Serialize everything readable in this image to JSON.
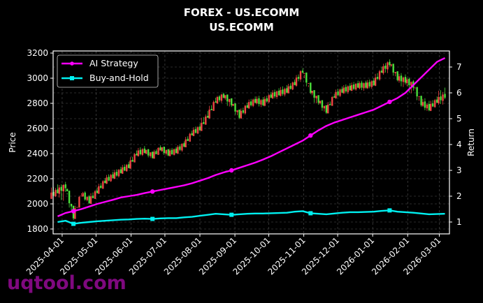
{
  "header": {
    "title_line1": "FOREX - US.ECOMM",
    "title_line2": "US.ECOMM"
  },
  "watermark": "uqtool.com",
  "colors": {
    "background": "#000000",
    "up_candle": "#ef4444",
    "down_candle": "#4ade3a",
    "ai_strategy": "#ff00ff",
    "buy_and_hold": "#00f0f0",
    "grid": "#555555",
    "axis": "#ffffff"
  },
  "chart_data": {
    "type": "candlestick+line",
    "title": "FOREX - US.ECOMM\nUS.ECOMM",
    "xlabel": "",
    "ylabel": "Price",
    "y2label": "Return",
    "ylim": [
      1760,
      3220
    ],
    "y2lim": [
      0.7,
      7.6
    ],
    "yticks": [
      1800,
      2000,
      2200,
      2400,
      2600,
      2800,
      3000,
      3200
    ],
    "y2ticks": [
      1,
      2,
      3,
      4,
      5,
      6,
      7
    ],
    "xticks": [
      "2025-04-01",
      "2025-05-01",
      "2025-06-01",
      "2025-07-01",
      "2025-08-01",
      "2025-09-01",
      "2025-10-01",
      "2025-11-01",
      "2025-12-01",
      "2026-01-01",
      "2026-02-01",
      "2026-03-01"
    ],
    "grid": true,
    "legend": {
      "position": "upper left",
      "entries": [
        "AI Strategy",
        "Buy-and-Hold"
      ]
    },
    "x": [
      "2025-03-28",
      "2025-04-04",
      "2025-04-11",
      "2025-04-18",
      "2025-04-25",
      "2025-05-02",
      "2025-05-09",
      "2025-05-16",
      "2025-05-23",
      "2025-05-30",
      "2025-06-06",
      "2025-06-13",
      "2025-06-20",
      "2025-06-27",
      "2025-07-04",
      "2025-07-11",
      "2025-07-18",
      "2025-07-25",
      "2025-08-01",
      "2025-08-08",
      "2025-08-15",
      "2025-08-22",
      "2025-08-29",
      "2025-09-05",
      "2025-09-12",
      "2025-09-19",
      "2025-09-26",
      "2025-10-03",
      "2025-10-10",
      "2025-10-17",
      "2025-10-24",
      "2025-10-31",
      "2025-11-07",
      "2025-11-14",
      "2025-11-21",
      "2025-11-28",
      "2025-12-05",
      "2025-12-12",
      "2025-12-19",
      "2025-12-26",
      "2026-01-02",
      "2026-01-09",
      "2026-01-16",
      "2026-01-23",
      "2026-01-30",
      "2026-02-06",
      "2026-02-13",
      "2026-02-20",
      "2026-02-27",
      "2026-03-06"
    ],
    "price_close": [
      2100,
      2140,
      1900,
      2080,
      2020,
      2100,
      2180,
      2220,
      2260,
      2300,
      2400,
      2420,
      2380,
      2440,
      2400,
      2420,
      2470,
      2560,
      2600,
      2700,
      2820,
      2860,
      2800,
      2700,
      2780,
      2820,
      2800,
      2860,
      2880,
      2900,
      2960,
      3060,
      2900,
      2820,
      2740,
      2860,
      2900,
      2920,
      2940,
      2940,
      2960,
      3060,
      3120,
      3000,
      2980,
      2940,
      2800,
      2760,
      2820,
      2860
    ],
    "price_high": [
      2180,
      2180,
      2050,
      2120,
      2100,
      2150,
      2220,
      2260,
      2300,
      2340,
      2450,
      2460,
      2420,
      2470,
      2440,
      2450,
      2500,
      2600,
      2640,
      2780,
      2880,
      2880,
      2840,
      2750,
      2820,
      2860,
      2860,
      2900,
      2920,
      2950,
      3000,
      3100,
      2980,
      2880,
      2820,
      2900,
      2940,
      2960,
      2980,
      2970,
      3000,
      3120,
      3160,
      3100,
      3040,
      3000,
      2900,
      2850,
      2870,
      2960
    ],
    "price_low": [
      2050,
      1950,
      1830,
      1950,
      2000,
      2020,
      2100,
      2170,
      2200,
      2250,
      2320,
      2380,
      2350,
      2380,
      2370,
      2390,
      2400,
      2490,
      2550,
      2620,
      2700,
      2790,
      2730,
      2650,
      2680,
      2760,
      2760,
      2780,
      2830,
      2850,
      2890,
      2920,
      2840,
      2740,
      2690,
      2760,
      2840,
      2870,
      2900,
      2900,
      2910,
      2940,
      3000,
      2950,
      2900,
      2820,
      2740,
      2720,
      2750,
      2760
    ],
    "series": [
      {
        "name": "AI Strategy",
        "values": [
          1.22,
          1.35,
          1.42,
          1.5,
          1.6,
          1.7,
          1.78,
          1.86,
          1.95,
          2.0,
          2.05,
          2.12,
          2.18,
          2.24,
          2.3,
          2.36,
          2.42,
          2.5,
          2.6,
          2.7,
          2.82,
          2.92,
          3.0,
          3.1,
          3.2,
          3.3,
          3.42,
          3.55,
          3.7,
          3.85,
          4.0,
          4.15,
          4.35,
          4.55,
          4.72,
          4.85,
          4.95,
          5.05,
          5.15,
          5.25,
          5.35,
          5.5,
          5.65,
          5.8,
          6.0,
          6.3,
          6.6,
          6.9,
          7.2,
          7.35
        ]
      },
      {
        "name": "Buy-and-Hold",
        "values": [
          1.0,
          1.05,
          0.93,
          0.97,
          1.0,
          1.03,
          1.05,
          1.07,
          1.09,
          1.1,
          1.12,
          1.13,
          1.12,
          1.14,
          1.15,
          1.15,
          1.18,
          1.2,
          1.24,
          1.28,
          1.32,
          1.3,
          1.28,
          1.3,
          1.32,
          1.33,
          1.33,
          1.34,
          1.35,
          1.36,
          1.4,
          1.42,
          1.34,
          1.32,
          1.3,
          1.33,
          1.36,
          1.38,
          1.38,
          1.39,
          1.4,
          1.43,
          1.45,
          1.4,
          1.38,
          1.36,
          1.33,
          1.3,
          1.31,
          1.32
        ]
      }
    ]
  },
  "axes": {
    "ylabel": "Price",
    "y2label": "Return"
  }
}
